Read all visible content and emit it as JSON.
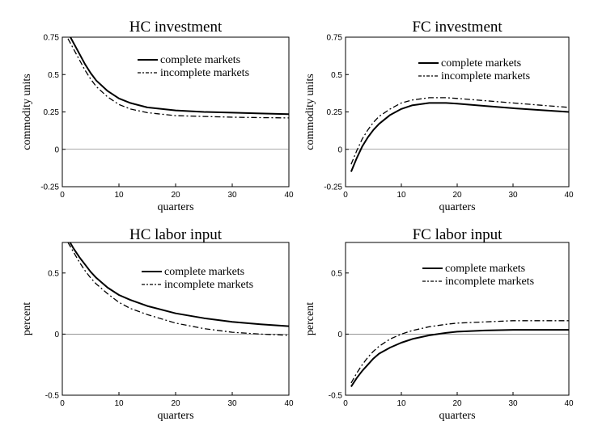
{
  "chart_data": [
    {
      "type": "line",
      "title": "HC investment",
      "xlabel": "quarters",
      "ylabel": "commodity units",
      "xlim": [
        0,
        40
      ],
      "ylim": [
        -0.25,
        0.75
      ],
      "xticks": [
        "0",
        "10",
        "20",
        "30",
        "40"
      ],
      "yticks": [
        "-0.25",
        "0",
        "0.25",
        "0.5",
        "0.75"
      ],
      "zero_line": true,
      "legend": "top-right",
      "x": [
        1,
        2,
        3,
        4,
        5,
        6,
        8,
        10,
        12,
        15,
        20,
        25,
        30,
        35,
        40
      ],
      "series": [
        {
          "name": "complete markets",
          "style": "solid",
          "values": [
            0.78,
            0.71,
            0.64,
            0.57,
            0.51,
            0.46,
            0.39,
            0.34,
            0.31,
            0.28,
            0.26,
            0.25,
            0.245,
            0.24,
            0.235
          ]
        },
        {
          "name": "incomplete markets",
          "style": "dash-dot",
          "values": [
            0.74,
            0.67,
            0.6,
            0.53,
            0.47,
            0.42,
            0.35,
            0.3,
            0.27,
            0.245,
            0.225,
            0.22,
            0.215,
            0.212,
            0.21
          ]
        }
      ]
    },
    {
      "type": "line",
      "title": "FC investment",
      "xlabel": "quarters",
      "ylabel": "commodity units",
      "xlim": [
        0,
        40
      ],
      "ylim": [
        -0.25,
        0.75
      ],
      "xticks": [
        "0",
        "10",
        "20",
        "30",
        "40"
      ],
      "yticks": [
        "-0.25",
        "0",
        "0.25",
        "0.5",
        "0.75"
      ],
      "zero_line": true,
      "legend": "top-right",
      "x": [
        1,
        2,
        3,
        4,
        5,
        6,
        8,
        10,
        12,
        15,
        18,
        20,
        25,
        30,
        35,
        40
      ],
      "series": [
        {
          "name": "complete markets",
          "style": "solid",
          "values": [
            -0.15,
            -0.06,
            0.02,
            0.08,
            0.13,
            0.17,
            0.23,
            0.27,
            0.295,
            0.31,
            0.31,
            0.305,
            0.29,
            0.275,
            0.262,
            0.25
          ]
        },
        {
          "name": "incomplete markets",
          "style": "dash-dot",
          "values": [
            -0.1,
            -0.01,
            0.07,
            0.13,
            0.18,
            0.22,
            0.27,
            0.31,
            0.33,
            0.345,
            0.345,
            0.34,
            0.325,
            0.31,
            0.295,
            0.28
          ]
        }
      ]
    },
    {
      "type": "line",
      "title": "HC labor input",
      "xlabel": "quarters",
      "ylabel": "percent",
      "xlim": [
        0,
        40
      ],
      "ylim": [
        -0.5,
        0.75
      ],
      "xticks": [
        "0",
        "10",
        "20",
        "30",
        "40"
      ],
      "yticks": [
        "-0.5",
        "0",
        "0.5"
      ],
      "zero_line": true,
      "legend": "top-right",
      "x": [
        1,
        2,
        3,
        4,
        5,
        6,
        8,
        10,
        12,
        15,
        20,
        25,
        30,
        35,
        40
      ],
      "series": [
        {
          "name": "complete markets",
          "style": "solid",
          "values": [
            0.78,
            0.7,
            0.63,
            0.57,
            0.51,
            0.46,
            0.38,
            0.32,
            0.28,
            0.23,
            0.17,
            0.13,
            0.1,
            0.08,
            0.065
          ]
        },
        {
          "name": "incomplete markets",
          "style": "dash-dot",
          "values": [
            0.75,
            0.67,
            0.59,
            0.52,
            0.46,
            0.41,
            0.33,
            0.26,
            0.21,
            0.16,
            0.09,
            0.045,
            0.015,
            0.0,
            -0.01
          ]
        }
      ]
    },
    {
      "type": "line",
      "title": "FC labor input",
      "xlabel": "quarters",
      "ylabel": "percent",
      "xlim": [
        0,
        40
      ],
      "ylim": [
        -0.5,
        0.75
      ],
      "xticks": [
        "0",
        "10",
        "20",
        "30",
        "40"
      ],
      "yticks": [
        "-0.5",
        "0",
        "0.5"
      ],
      "zero_line": true,
      "legend": "top-right",
      "x": [
        1,
        2,
        3,
        4,
        5,
        6,
        8,
        10,
        12,
        15,
        18,
        20,
        25,
        30,
        35,
        40
      ],
      "series": [
        {
          "name": "complete markets",
          "style": "solid",
          "values": [
            -0.43,
            -0.36,
            -0.3,
            -0.25,
            -0.2,
            -0.16,
            -0.11,
            -0.07,
            -0.04,
            -0.01,
            0.01,
            0.02,
            0.03,
            0.035,
            0.035,
            0.035
          ]
        },
        {
          "name": "incomplete markets",
          "style": "dash-dot",
          "values": [
            -0.4,
            -0.32,
            -0.25,
            -0.19,
            -0.14,
            -0.1,
            -0.04,
            0.0,
            0.03,
            0.06,
            0.08,
            0.09,
            0.1,
            0.11,
            0.11,
            0.11
          ]
        }
      ]
    }
  ]
}
